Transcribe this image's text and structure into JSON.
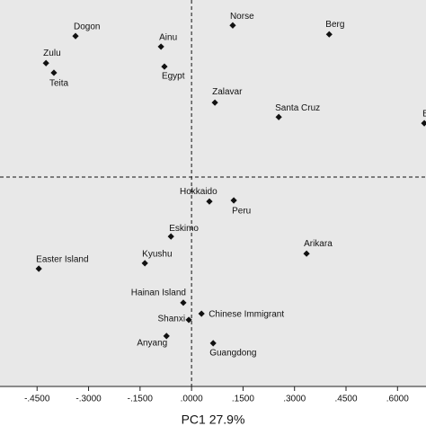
{
  "chart_data": {
    "type": "scatter",
    "x_label": "PC1 27.9%",
    "xlim": [
      -0.558,
      0.683
    ],
    "ylim": [
      -0.61,
      0.516
    ],
    "xticks": [
      {
        "value": -0.45,
        "label": "-.4500"
      },
      {
        "value": -0.3,
        "label": "-.3000"
      },
      {
        "value": -0.15,
        "label": "-.1500"
      },
      {
        "value": 0,
        "label": ".0000"
      },
      {
        "value": 0.15,
        "label": ".1500"
      },
      {
        "value": 0.3,
        "label": ".3000"
      },
      {
        "value": 0.45,
        "label": ".4500"
      },
      {
        "value": 0.6,
        "label": ".6000"
      }
    ],
    "color": "#111111",
    "labels": [
      "Dogon",
      "Ainu",
      "Norse",
      "Berg",
      "Zulu",
      "Teita",
      "Egypt",
      "Zalavar",
      "Santa Cruz",
      "B",
      "Hokkaido",
      "Peru",
      "Eskimo",
      "Arikara",
      "Easter Island",
      "Kyushu",
      "Hainan Island",
      "Chinese Immigrant",
      "Shanxi",
      "Anyang",
      "Guangdong"
    ],
    "x": [
      -0.338,
      -0.089,
      0.12,
      0.401,
      -0.424,
      -0.401,
      -0.079,
      0.068,
      0.254,
      0.678,
      0.052,
      0.123,
      -0.06,
      0.335,
      -0.445,
      -0.136,
      -0.024,
      0.029,
      -0.008,
      -0.073,
      0.063
    ],
    "values": [
      0.411,
      0.38,
      0.442,
      0.416,
      0.332,
      0.304,
      0.322,
      0.217,
      0.175,
      0.157,
      -0.071,
      -0.068,
      -0.173,
      -0.223,
      -0.267,
      -0.251,
      -0.366,
      -0.398,
      -0.416,
      -0.463,
      -0.484
    ]
  }
}
